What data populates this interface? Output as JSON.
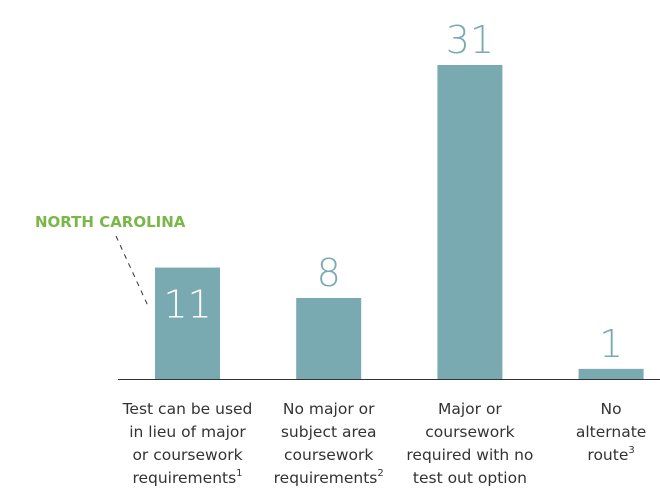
{
  "chart_data": {
    "type": "bar",
    "categories": [
      [
        "Test can be used",
        "in lieu of major",
        "or coursework",
        "requirements"
      ],
      [
        "No major or",
        "subject area",
        "coursework",
        "requirements"
      ],
      [
        "Major or",
        "coursework",
        "required with no",
        "test out option"
      ],
      [
        "No",
        "alternate",
        "route"
      ]
    ],
    "category_notes": [
      "1",
      "2",
      null,
      "3"
    ],
    "values": [
      11,
      8,
      31,
      1
    ],
    "value_label_position": [
      "inside",
      "above",
      "above",
      "above"
    ],
    "color": "#7aaab1",
    "annotation": "NORTH CAROLINA"
  }
}
